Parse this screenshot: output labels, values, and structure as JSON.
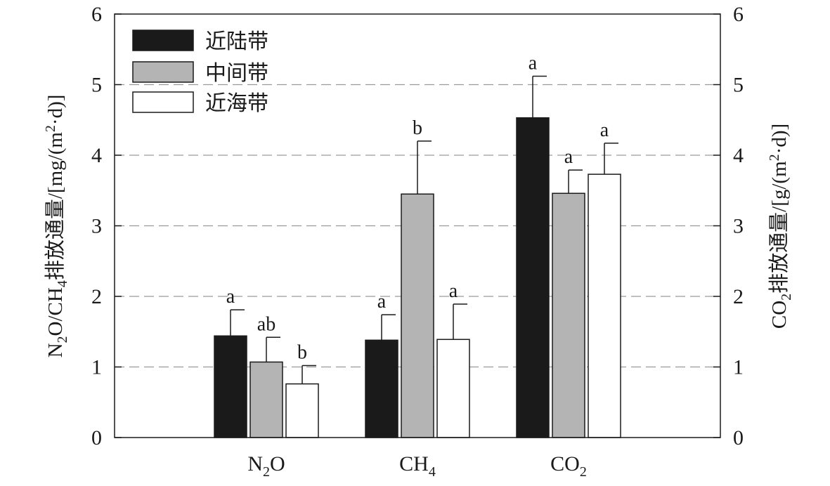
{
  "chart_data": {
    "type": "bar",
    "categories": [
      "N2O",
      "CH4",
      "CO2"
    ],
    "category_labels": [
      {
        "main": "N",
        "sub": "2",
        "tail": "O"
      },
      {
        "main": "CH",
        "sub": "4",
        "tail": ""
      },
      {
        "main": "CO",
        "sub": "2",
        "tail": ""
      }
    ],
    "series": [
      {
        "name": "近陆带",
        "color": "#1a1a1a",
        "values": [
          1.44,
          1.38,
          4.53
        ],
        "errors": [
          0.37,
          0.36,
          0.59
        ],
        "letters": [
          "a",
          "a",
          "a"
        ]
      },
      {
        "name": "中间带",
        "color": "#b4b4b4",
        "values": [
          1.07,
          3.45,
          3.46
        ],
        "errors": [
          0.35,
          0.75,
          0.33
        ],
        "letters": [
          "ab",
          "b",
          "a"
        ]
      },
      {
        "name": "近海带",
        "color": "#ffffff",
        "values": [
          0.76,
          1.39,
          3.73
        ],
        "errors": [
          0.26,
          0.5,
          0.44
        ],
        "letters": [
          "b",
          "a",
          "a"
        ]
      }
    ],
    "ylim": [
      0,
      6
    ],
    "yticks": [
      0,
      1,
      2,
      3,
      4,
      5,
      6
    ],
    "y2ticks": [
      0,
      1,
      2,
      3,
      4,
      5,
      6
    ],
    "ylabel": {
      "p1": "N",
      "s1": "2",
      "p2": "O/CH",
      "s2": "4",
      "p3": "排放通量/[mg/(m",
      "sup": "2",
      "p4": "·d)]"
    },
    "y2label": {
      "p1": "CO",
      "s1": "2",
      "p2": "排放通量/[g/(m",
      "sup": "2",
      "p3": "·d)]"
    },
    "grid": "dashed horizontal",
    "legend_position": "top-left"
  }
}
